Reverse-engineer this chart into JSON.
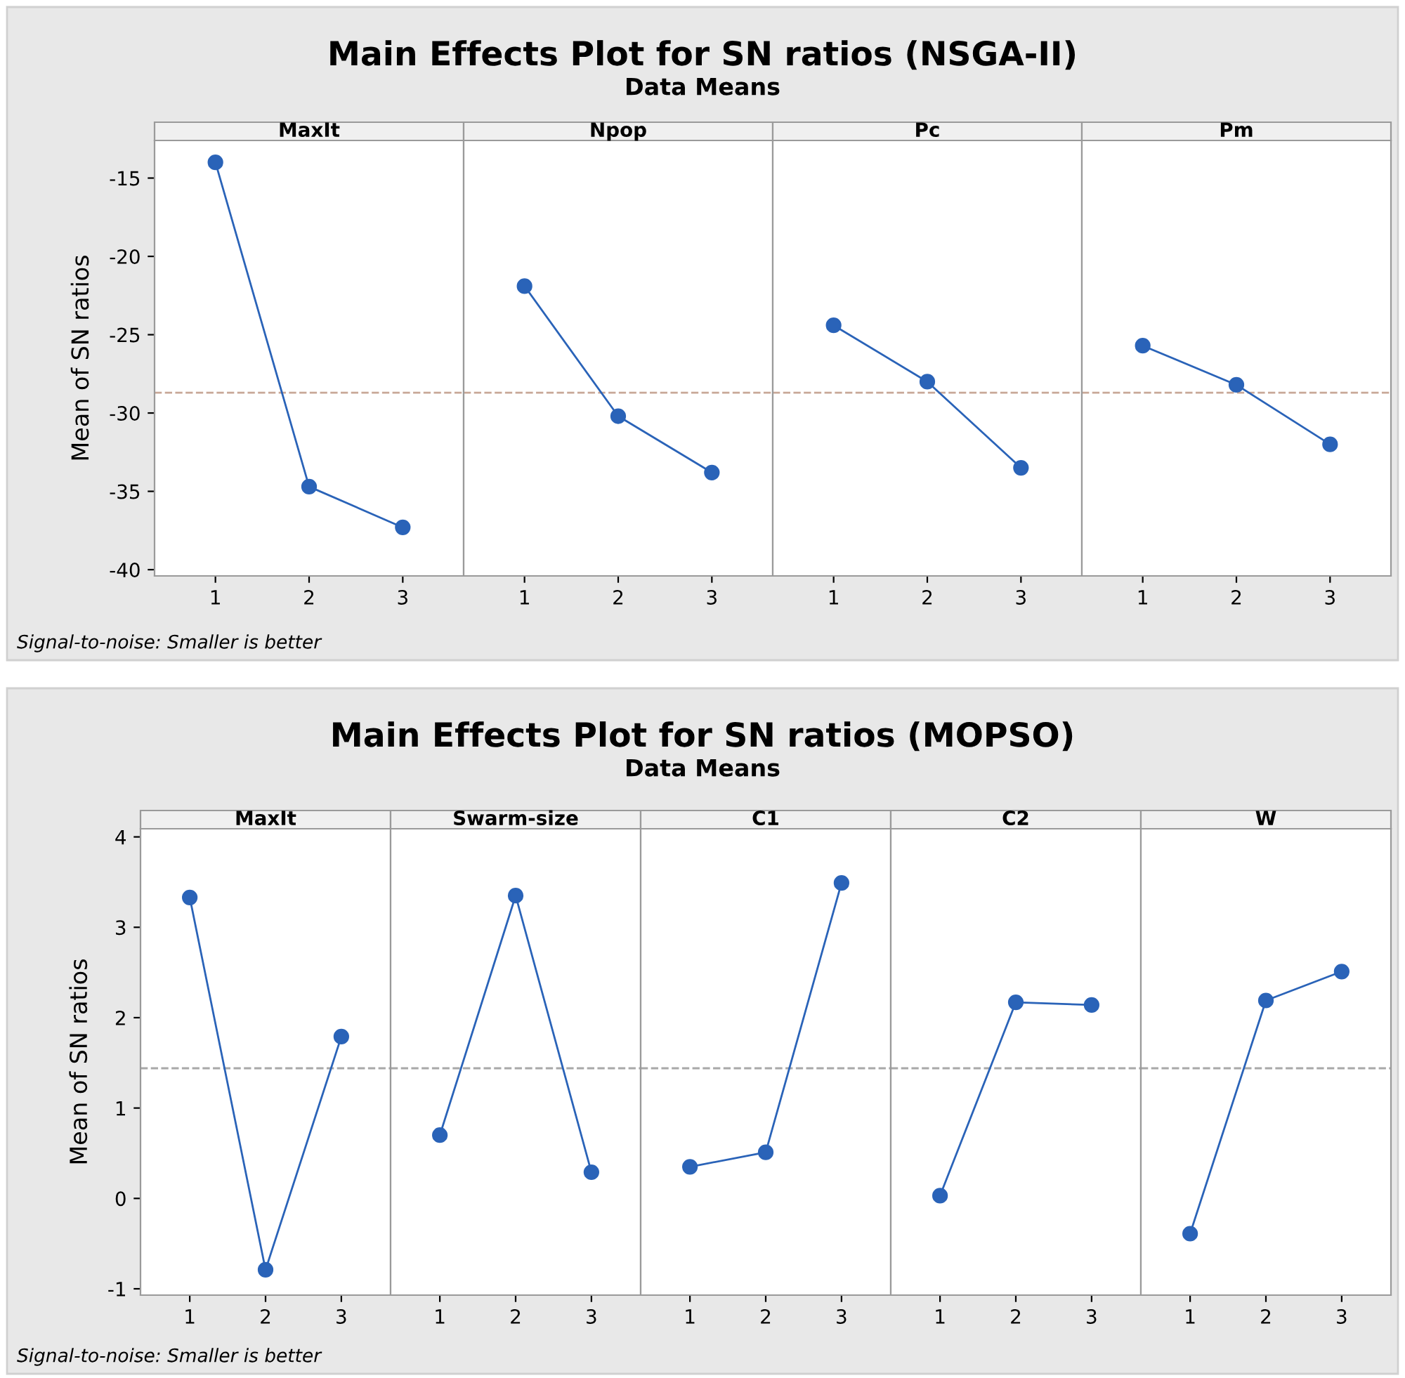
{
  "chart_data": [
    {
      "type": "line",
      "title": "MaxIt",
      "ylabel": "Mean of SN ratios",
      "annotations": [
        "Main Effects Plot for SN ratios (NSGA-II)",
        "Data Means",
        "Signal-to-noise: Smaller is better"
      ],
      "categories": [
        "1",
        "2",
        "3"
      ],
      "color": "#2a63b8",
      "values": [
        -14.0,
        -34.7,
        -37.3
      ],
      "marker": "circle",
      "line_style": "solid",
      "ylim": [
        -40.4,
        -12.6
      ],
      "yticks": [
        -15,
        -20,
        -25,
        -30,
        -35,
        -40
      ],
      "ref_lines": [
        {
          "axis": "y",
          "value": -28.7,
          "color": "#c8a898",
          "line_style": "dashed"
        }
      ]
    },
    {
      "type": "line",
      "title": "Npop",
      "categories": [
        "1",
        "2",
        "3"
      ],
      "color": "#2a63b8",
      "values": [
        -21.9,
        -30.2,
        -33.8
      ],
      "marker": "circle",
      "line_style": "solid",
      "ylim": [
        -40.4,
        -12.6
      ],
      "tick_labels": "x",
      "ref_lines": [
        {
          "axis": "y",
          "value": -28.7,
          "color": "#c8a898",
          "line_style": "dashed"
        }
      ]
    },
    {
      "type": "line",
      "title": "Pc",
      "categories": [
        "1",
        "2",
        "3"
      ],
      "color": "#2a63b8",
      "values": [
        -24.4,
        -28.0,
        -33.5
      ],
      "marker": "circle",
      "line_style": "solid",
      "ylim": [
        -40.4,
        -12.6
      ],
      "tick_labels": "x",
      "ref_lines": [
        {
          "axis": "y",
          "value": -28.7,
          "color": "#c8a898",
          "line_style": "dashed"
        }
      ]
    },
    {
      "type": "line",
      "title": "Pm",
      "categories": [
        "1",
        "2",
        "3"
      ],
      "color": "#2a63b8",
      "values": [
        -25.7,
        -28.2,
        -32.0
      ],
      "marker": "circle",
      "line_style": "solid",
      "ylim": [
        -40.4,
        -12.6
      ],
      "tick_labels": "x",
      "ref_lines": [
        {
          "axis": "y",
          "value": -28.7,
          "color": "#c8a898",
          "line_style": "dashed"
        }
      ]
    },
    {
      "type": "line",
      "title": "MaxIt",
      "ylabel": "Mean of SN ratios",
      "annotations": [
        "Main Effects Plot for SN ratios (MOPSO)",
        "Data Means",
        "Signal-to-noise: Smaller is better"
      ],
      "categories": [
        "1",
        "2",
        "3"
      ],
      "color": "#2a63b8",
      "values": [
        3.33,
        -0.79,
        1.79
      ],
      "marker": "circle",
      "line_style": "solid",
      "ylim": [
        -1.07,
        4.09
      ],
      "yticks": [
        -1,
        0,
        1,
        2,
        3,
        4
      ],
      "ref_lines": [
        {
          "axis": "y",
          "value": 1.44,
          "color": "#a8a8a8",
          "line_style": "dashed"
        }
      ]
    },
    {
      "type": "line",
      "title": "Swarm-size",
      "categories": [
        "1",
        "2",
        "3"
      ],
      "color": "#2a63b8",
      "values": [
        0.7,
        3.35,
        0.29
      ],
      "marker": "circle",
      "line_style": "solid",
      "ylim": [
        -1.07,
        4.09
      ],
      "tick_labels": "x",
      "ref_lines": [
        {
          "axis": "y",
          "value": 1.44,
          "color": "#a8a8a8",
          "line_style": "dashed"
        }
      ]
    },
    {
      "type": "line",
      "title": "C1",
      "categories": [
        "1",
        "2",
        "3"
      ],
      "color": "#2a63b8",
      "values": [
        0.35,
        0.51,
        3.49
      ],
      "marker": "circle",
      "line_style": "solid",
      "ylim": [
        -1.07,
        4.09
      ],
      "tick_labels": "x",
      "ref_lines": [
        {
          "axis": "y",
          "value": 1.44,
          "color": "#a8a8a8",
          "line_style": "dashed"
        }
      ]
    },
    {
      "type": "line",
      "title": "C2",
      "categories": [
        "1",
        "2",
        "3"
      ],
      "color": "#2a63b8",
      "values": [
        0.03,
        2.17,
        2.14
      ],
      "marker": "circle",
      "line_style": "solid",
      "ylim": [
        -1.07,
        4.09
      ],
      "tick_labels": "x",
      "ref_lines": [
        {
          "axis": "y",
          "value": 1.44,
          "color": "#a8a8a8",
          "line_style": "dashed"
        }
      ]
    },
    {
      "type": "line",
      "title": "W",
      "categories": [
        "1",
        "2",
        "3"
      ],
      "color": "#2a63b8",
      "values": [
        -0.39,
        2.19,
        2.51
      ],
      "marker": "circle",
      "line_style": "solid",
      "ylim": [
        -1.07,
        4.09
      ],
      "tick_labels": "x",
      "ref_lines": [
        {
          "axis": "y",
          "value": 1.44,
          "color": "#a8a8a8",
          "line_style": "dashed"
        }
      ]
    }
  ]
}
